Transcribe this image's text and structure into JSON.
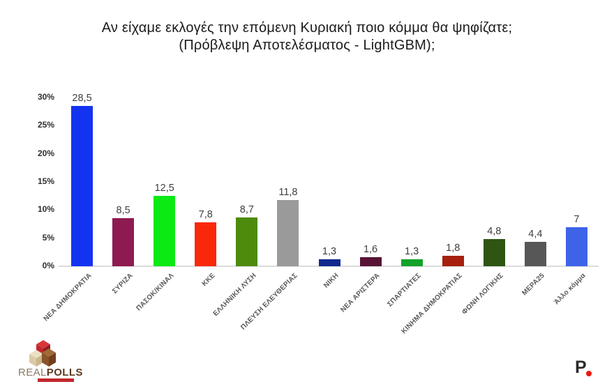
{
  "title": {
    "line1": "Αν είχαμε εκλογές την επόμενη Κυριακή ποιο κόμμα θα ψηφίζατε;",
    "line2": "(Πρόβλεψη Αποτελέσματος - LightGBM);"
  },
  "chart_data": {
    "type": "bar",
    "categories": [
      "ΝΕΑ ΔΗΜΟΚΡΑΤΙΑ",
      "ΣΥΡΙΖΑ",
      "ΠΑΣΟΚ/ΚΙΝΑΛ",
      "ΚΚΕ",
      "ΕΛΛΗΝΙΚΗ ΛΥΣΗ",
      "ΠΛΕΥΣΗ ΕΛΕΥΘΕΡΙΑΣ",
      "ΝΙΚΗ",
      "ΝΕΑ ΑΡΙΣΤΕΡΑ",
      "ΣΠΑΡΤΙΑΤΕΣ",
      "ΚΙΝΗΜΑ ΔΗΜΟΚΡΑΤΙΑΣ",
      "ΦΩΝΗ ΛΟΓΙΚΗΣ",
      "ΜΕΡΑ25",
      "Άλλο κόμμα"
    ],
    "values": [
      28.5,
      8.5,
      12.5,
      7.8,
      8.7,
      11.8,
      1.3,
      1.6,
      1.3,
      1.8,
      4.8,
      4.4,
      7
    ],
    "value_labels": [
      "28,5",
      "8,5",
      "12,5",
      "7,8",
      "8,7",
      "11,8",
      "1,3",
      "1,6",
      "1,3",
      "1,8",
      "4,8",
      "4,4",
      "7"
    ],
    "bar_colors": [
      "#1433f0",
      "#8e1a52",
      "#0bea15",
      "#f9280b",
      "#4e8b0c",
      "#9a9a9a",
      "#12288e",
      "#581434",
      "#12a228",
      "#a5200f",
      "#2e5511",
      "#575757",
      "#3e63e8"
    ],
    "y_ticks": [
      "0%",
      "5%",
      "10%",
      "15%",
      "20%",
      "25%",
      "30%"
    ],
    "ylim": [
      0,
      30
    ],
    "grid": false,
    "legend": "none",
    "value_label_color": "#3f3f3f",
    "category_label_color": "#595959",
    "axis_line_color": "#dcdcdc",
    "title": "Αν είχαμε εκλογές την επόμενη Κυριακή ποιο κόμμα θα ψηφίζατε; (Πρόβλεψη Αποτελέσματος - LightGBM);"
  },
  "branding": {
    "realpolls": {
      "word1": "REAL",
      "word2": "POLLS",
      "strip_color": "#c1272d"
    },
    "publisher": {
      "letter": "P",
      "dot_color": "#e8190f"
    }
  }
}
